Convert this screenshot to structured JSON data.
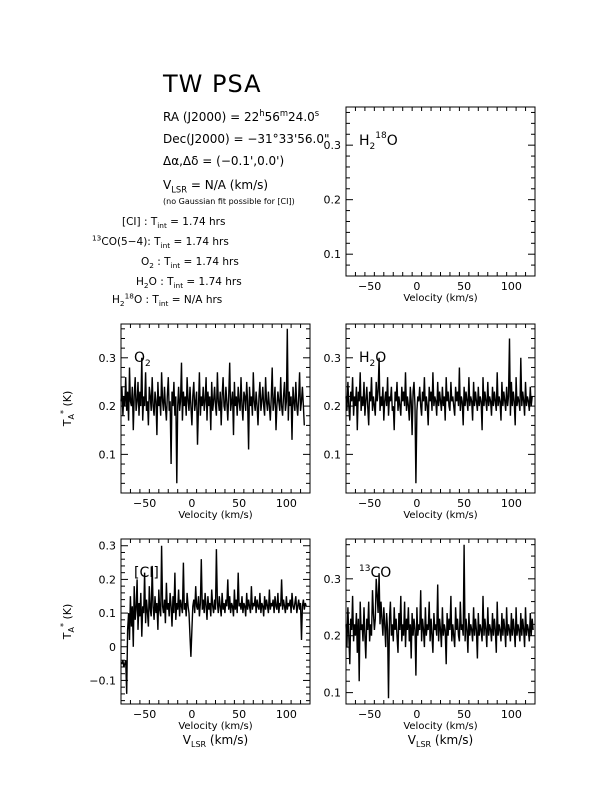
{
  "title": "TW PSA",
  "info": {
    "ra": "RA (J2000) = 22h56m24.0s",
    "dec": "Dec(J2000) = −31°33'56.0\"",
    "offset": "Δα,Δδ = (−0.1',0.0')",
    "vlsr": "VLSR = N/A (km/s)",
    "note": "(no Gaussian fit possible for [CI])"
  },
  "integration_times": [
    {
      "line": "[CI]",
      "tint": "1.74 hrs"
    },
    {
      "line": "13CO(5−4)",
      "tint": "1.74 hrs"
    },
    {
      "line": "O2",
      "tint": "1.74 hrs"
    },
    {
      "line": "H2O",
      "tint": "1.74 hrs"
    },
    {
      "line": "H2 18O",
      "tint": "N/A hrs"
    }
  ],
  "chart_data": [
    {
      "id": "h218o",
      "type": "line",
      "label": "H2 18O",
      "xlabel": "Velocity (km/s)",
      "ylabel": "",
      "xlim": [
        -75,
        125
      ],
      "ylim": [
        0.06,
        0.37
      ],
      "xticks": [
        -50,
        0,
        50,
        100
      ],
      "yticks": [
        0.1,
        0.2,
        0.3
      ],
      "series": [],
      "grid": false,
      "color": "#000000"
    },
    {
      "id": "o2",
      "type": "line",
      "label": "O2",
      "xlabel": "Velocity (km/s)",
      "ylabel": "TA* (K)",
      "xlim": [
        -75,
        125
      ],
      "ylim": [
        0.02,
        0.37
      ],
      "xticks": [
        -50,
        0,
        50,
        100
      ],
      "yticks": [
        0.1,
        0.2,
        0.3
      ],
      "series": [
        {
          "x_start": -75,
          "x_step": 1,
          "values": [
            0.21,
            0.24,
            0.18,
            0.22,
            0.2,
            0.26,
            0.19,
            0.23,
            0.17,
            0.28,
            0.21,
            0.2,
            0.24,
            0.15,
            0.22,
            0.26,
            0.19,
            0.21,
            0.25,
            0.18,
            0.23,
            0.2,
            0.3,
            0.17,
            0.22,
            0.2,
            0.27,
            0.19,
            0.21,
            0.16,
            0.24,
            0.22,
            0.19,
            0.26,
            0.2,
            0.18,
            0.23,
            0.21,
            0.14,
            0.25,
            0.2,
            0.22,
            0.18,
            0.27,
            0.21,
            0.19,
            0.24,
            0.2,
            0.17,
            0.22,
            0.26,
            0.19,
            0.21,
            0.08,
            0.23,
            0.2,
            0.25,
            0.18,
            0.22,
            0.04,
            0.2,
            0.24,
            0.19,
            0.21,
            0.29,
            0.17,
            0.23,
            0.2,
            0.22,
            0.18,
            0.26,
            0.21,
            0.19,
            0.24,
            0.2,
            0.16,
            0.22,
            0.25,
            0.19,
            0.21,
            0.23,
            0.12,
            0.2,
            0.27,
            0.18,
            0.22,
            0.2,
            0.24,
            0.19,
            0.21,
            0.26,
            0.17,
            0.23,
            0.2,
            0.22,
            0.15,
            0.25,
            0.19,
            0.21,
            0.24,
            0.2,
            0.18,
            0.27,
            0.21,
            0.19,
            0.23,
            0.16,
            0.22,
            0.26,
            0.2,
            0.19,
            0.24,
            0.21,
            0.17,
            0.22,
            0.29,
            0.19,
            0.21,
            0.23,
            0.14,
            0.25,
            0.2,
            0.22,
            0.18,
            0.24,
            0.21,
            0.19,
            0.26,
            0.2,
            0.17,
            0.23,
            0.22,
            0.19,
            0.25,
            0.21,
            0.11,
            0.24,
            0.2,
            0.22,
            0.18,
            0.27,
            0.21,
            0.19,
            0.23,
            0.2,
            0.16,
            0.22,
            0.25,
            0.19,
            0.21,
            0.24,
            0.2,
            0.18,
            0.26,
            0.21,
            0.19,
            0.23,
            0.2,
            0.17,
            0.22,
            0.28,
            0.19,
            0.21,
            0.24,
            0.15,
            0.2,
            0.23,
            0.21,
            0.19,
            0.26,
            0.2,
            0.18,
            0.22,
            0.25,
            0.19,
            0.21,
            0.36,
            0.17,
            0.23,
            0.2,
            0.22,
            0.13,
            0.24,
            0.21,
            0.19,
            0.25,
            0.2,
            0.18,
            0.22,
            0.27,
            0.19,
            0.21,
            0.24,
            0.2,
            0.16
          ]
        }
      ],
      "grid": false,
      "color": "#000000"
    },
    {
      "id": "h2o",
      "type": "line",
      "label": "H2O",
      "xlabel": "Velocity (km/s)",
      "ylabel": "",
      "xlim": [
        -75,
        125
      ],
      "ylim": [
        0.02,
        0.37
      ],
      "xticks": [
        -50,
        0,
        50,
        100
      ],
      "yticks": [
        0.1,
        0.2,
        0.3
      ],
      "series": [
        {
          "x_start": -75,
          "x_step": 1,
          "values": [
            0.22,
            0.19,
            0.25,
            0.2,
            0.17,
            0.23,
            0.21,
            0.26,
            0.18,
            0.22,
            0.2,
            0.24,
            0.15,
            0.23,
            0.21,
            0.27,
            0.19,
            0.22,
            0.2,
            0.25,
            0.18,
            0.21,
            0.24,
            0.2,
            0.16,
            0.23,
            0.21,
            0.26,
            0.19,
            0.22,
            0.2,
            0.18,
            0.25,
            0.21,
            0.23,
            0.3,
            0.19,
            0.22,
            0.2,
            0.24,
            0.17,
            0.21,
            0.23,
            0.2,
            0.26,
            0.18,
            0.22,
            0.21,
            0.24,
            0.19,
            0.2,
            0.15,
            0.23,
            0.21,
            0.25,
            0.19,
            0.22,
            0.2,
            0.18,
            0.24,
            0.21,
            0.23,
            0.2,
            0.27,
            0.19,
            0.22,
            0.2,
            0.17,
            0.24,
            0.21,
            0.14,
            0.23,
            0.25,
            0.2,
            0.04,
            0.19,
            0.22,
            0.21,
            0.24,
            0.2,
            0.18,
            0.23,
            0.21,
            0.26,
            0.19,
            0.22,
            0.2,
            0.16,
            0.24,
            0.21,
            0.23,
            0.19,
            0.27,
            0.2,
            0.22,
            0.21,
            0.18,
            0.25,
            0.2,
            0.23,
            0.21,
            0.19,
            0.24,
            0.2,
            0.22,
            0.17,
            0.26,
            0.21,
            0.23,
            0.2,
            0.19,
            0.25,
            0.21,
            0.22,
            0.2,
            0.18,
            0.24,
            0.21,
            0.23,
            0.2,
            0.28,
            0.19,
            0.22,
            0.21,
            0.16,
            0.24,
            0.2,
            0.23,
            0.21,
            0.19,
            0.26,
            0.2,
            0.22,
            0.21,
            0.17,
            0.25,
            0.2,
            0.23,
            0.21,
            0.19,
            0.24,
            0.2,
            0.22,
            0.21,
            0.15,
            0.26,
            0.2,
            0.23,
            0.21,
            0.19,
            0.25,
            0.2,
            0.22,
            0.21,
            0.18,
            0.24,
            0.2,
            0.23,
            0.21,
            0.19,
            0.27,
            0.2,
            0.22,
            0.21,
            0.17,
            0.25,
            0.2,
            0.23,
            0.21,
            0.19,
            0.24,
            0.2,
            0.22,
            0.34,
            0.18,
            0.25,
            0.2,
            0.23,
            0.21,
            0.16,
            0.26,
            0.2,
            0.22,
            0.21,
            0.19,
            0.3,
            0.2,
            0.23,
            0.21,
            0.18,
            0.25,
            0.2,
            0.22,
            0.21,
            0.19,
            0.24,
            0.2,
            0.22
          ]
        }
      ],
      "grid": false,
      "color": "#000000"
    },
    {
      "id": "ci",
      "type": "line",
      "label": "[CI]",
      "xlabel": "Velocity (km/s)",
      "ylabel": "TA* (K)",
      "xlim": [
        -75,
        125
      ],
      "ylim": [
        -0.17,
        0.32
      ],
      "xticks": [
        -50,
        0,
        50,
        100
      ],
      "yticks": [
        -0.1,
        0,
        0.1,
        0.2,
        0.3
      ],
      "series": [
        {
          "x_start": -75,
          "x_step": 1,
          "values": [
            -0.05,
            -0.05,
            -0.04,
            -0.06,
            -0.05,
            -0.04,
            -0.14,
            0.05,
            0.1,
            0.02,
            0.15,
            0.06,
            0.12,
            0.0,
            0.18,
            0.08,
            0.11,
            0.2,
            0.05,
            0.13,
            0.09,
            0.16,
            0.03,
            0.12,
            0.1,
            0.22,
            0.07,
            0.14,
            0.1,
            0.06,
            0.18,
            0.11,
            0.09,
            0.24,
            0.12,
            0.08,
            0.15,
            0.1,
            0.13,
            0.05,
            0.17,
            0.11,
            0.09,
            0.3,
            0.12,
            0.1,
            0.14,
            0.07,
            0.19,
            0.11,
            0.13,
            0.09,
            0.16,
            0.12,
            0.06,
            0.15,
            0.1,
            0.22,
            0.08,
            0.13,
            0.11,
            0.17,
            0.09,
            0.14,
            0.12,
            0.1,
            0.25,
            0.11,
            0.13,
            0.09,
            0.16,
            0.12,
            0.1,
            0.03,
            -0.03,
            0.05,
            0.12,
            0.14,
            0.1,
            0.18,
            0.12,
            0.11,
            0.15,
            0.09,
            0.13,
            0.26,
            0.11,
            0.14,
            0.1,
            0.16,
            0.12,
            0.08,
            0.15,
            0.11,
            0.13,
            0.09,
            0.17,
            0.12,
            0.1,
            0.14,
            0.11,
            0.29,
            0.13,
            0.1,
            0.15,
            0.12,
            0.09,
            0.16,
            0.11,
            0.13,
            0.1,
            0.14,
            0.12,
            0.2,
            0.11,
            0.15,
            0.1,
            0.13,
            0.12,
            0.09,
            0.17,
            0.11,
            0.14,
            0.1,
            0.22,
            0.12,
            0.13,
            0.11,
            0.15,
            0.1,
            0.13,
            0.12,
            0.09,
            0.16,
            0.11,
            0.14,
            0.12,
            0.1,
            0.18,
            0.11,
            0.13,
            0.12,
            0.15,
            0.1,
            0.14,
            0.12,
            0.11,
            0.16,
            0.1,
            0.13,
            0.12,
            0.09,
            0.15,
            0.11,
            0.14,
            0.12,
            0.1,
            0.17,
            0.11,
            0.13,
            0.12,
            0.14,
            0.1,
            0.15,
            0.12,
            0.11,
            0.16,
            0.1,
            0.13,
            0.12,
            0.2,
            0.11,
            0.14,
            0.12,
            0.1,
            0.15,
            0.11,
            0.13,
            0.12,
            0.14,
            0.1,
            0.16,
            0.12,
            0.11,
            0.13,
            0.15,
            0.1,
            0.12,
            0.14,
            0.11,
            0.13,
            0.02,
            0.12,
            0.14,
            0.11,
            0.13,
            0.12
          ]
        }
      ],
      "grid": false,
      "color": "#000000"
    },
    {
      "id": "13co",
      "type": "line",
      "label": "13CO",
      "xlabel": "Velocity (km/s)",
      "ylabel": "",
      "xlim": [
        -75,
        125
      ],
      "ylim": [
        0.08,
        0.37
      ],
      "xticks": [
        -50,
        0,
        50,
        100
      ],
      "yticks": [
        0.1,
        0.2,
        0.3
      ],
      "series": [
        {
          "x_start": -75,
          "x_step": 1,
          "values": [
            0.22,
            0.18,
            0.25,
            0.2,
            0.15,
            0.23,
            0.21,
            0.27,
            0.19,
            0.22,
            0.2,
            0.24,
            0.17,
            0.23,
            0.12,
            0.26,
            0.21,
            0.22,
            0.19,
            0.25,
            0.2,
            0.16,
            0.23,
            0.21,
            0.26,
            0.19,
            0.22,
            0.2,
            0.28,
            0.24,
            0.21,
            0.23,
            0.3,
            0.27,
            0.24,
            0.31,
            0.22,
            0.26,
            0.23,
            0.2,
            0.25,
            0.22,
            0.18,
            0.24,
            0.21,
            0.09,
            0.23,
            0.26,
            0.2,
            0.22,
            0.19,
            0.25,
            0.21,
            0.23,
            0.2,
            0.17,
            0.24,
            0.21,
            0.27,
            0.19,
            0.22,
            0.2,
            0.26,
            0.18,
            0.23,
            0.21,
            0.25,
            0.19,
            0.22,
            0.16,
            0.24,
            0.2,
            0.23,
            0.21,
            0.13,
            0.25,
            0.2,
            0.22,
            0.21,
            0.28,
            0.19,
            0.23,
            0.21,
            0.18,
            0.25,
            0.2,
            0.22,
            0.21,
            0.26,
            0.19,
            0.23,
            0.2,
            0.17,
            0.24,
            0.21,
            0.22,
            0.2,
            0.29,
            0.19,
            0.23,
            0.21,
            0.18,
            0.25,
            0.2,
            0.22,
            0.21,
            0.15,
            0.24,
            0.2,
            0.23,
            0.21,
            0.27,
            0.19,
            0.22,
            0.2,
            0.18,
            0.25,
            0.21,
            0.23,
            0.2,
            0.19,
            0.26,
            0.21,
            0.22,
            0.2,
            0.36,
            0.19,
            0.23,
            0.21,
            0.17,
            0.24,
            0.2,
            0.22,
            0.21,
            0.19,
            0.25,
            0.2,
            0.23,
            0.21,
            0.16,
            0.24,
            0.2,
            0.22,
            0.21,
            0.19,
            0.27,
            0.2,
            0.23,
            0.21,
            0.18,
            0.25,
            0.2,
            0.22,
            0.21,
            0.19,
            0.24,
            0.2,
            0.23,
            0.21,
            0.17,
            0.26,
            0.2,
            0.22,
            0.21,
            0.19,
            0.24,
            0.2,
            0.23,
            0.21,
            0.18,
            0.25,
            0.2,
            0.22,
            0.21,
            0.19,
            0.24,
            0.2,
            0.23,
            0.21,
            0.18,
            0.25,
            0.2,
            0.22,
            0.21,
            0.19,
            0.24,
            0.2,
            0.23,
            0.21,
            0.18,
            0.25,
            0.2,
            0.22,
            0.21,
            0.19,
            0.24,
            0.2,
            0.23,
            0.21
          ]
        }
      ],
      "grid": false,
      "color": "#000000"
    }
  ],
  "bottom_labels": {
    "vlsr_left": "VLSR (km/s)",
    "vlsr_right": "VLSR (km/s)"
  }
}
